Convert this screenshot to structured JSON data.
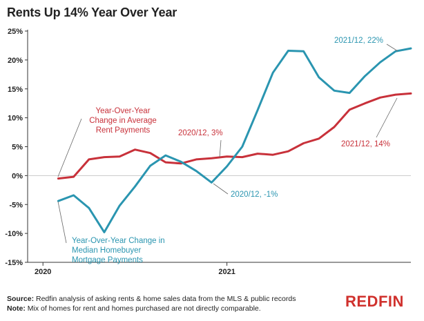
{
  "chart_data": {
    "type": "line",
    "title": "Rents Up 14% Year Over Year",
    "xlabel": "",
    "ylabel": "",
    "ylim": [
      -15,
      25
    ],
    "y_ticks": [
      25,
      20,
      15,
      10,
      5,
      0,
      -5,
      -10,
      -15
    ],
    "y_tick_labels": [
      "25%",
      "20%",
      "15%",
      "10%",
      "5%",
      "0%",
      "-5%",
      "-10%",
      "-15%"
    ],
    "x_tick_labels": [
      "2020",
      "2021"
    ],
    "x_tick_positions": [
      0,
      12
    ],
    "xlim": [
      -1,
      24
    ],
    "grid": false,
    "series": [
      {
        "name": "Year-Over-Year Change in Average Rent Payments",
        "color": "#c8313a",
        "x": [
          1,
          2,
          3,
          4,
          5,
          6,
          7,
          8,
          9,
          10,
          11,
          12,
          13,
          14,
          15,
          16,
          17,
          18,
          19,
          20,
          21,
          22,
          23,
          24
        ],
        "values": [
          -0.5,
          -0.2,
          2.8,
          3.2,
          3.3,
          4.5,
          3.9,
          2.3,
          2.1,
          2.8,
          3.0,
          3.3,
          3.2,
          3.8,
          3.6,
          4.2,
          5.6,
          6.4,
          8.4,
          11.4,
          12.5,
          13.5,
          14.0,
          14.2
        ]
      },
      {
        "name": "Year-Over-Year Change in Median Homebuyer Mortgage Payments",
        "color": "#2a95b0",
        "x": [
          1,
          2,
          3,
          4,
          5,
          6,
          7,
          8,
          9,
          10,
          11,
          12,
          13,
          14,
          15,
          16,
          17,
          18,
          19,
          20,
          21,
          22,
          23,
          24
        ],
        "values": [
          -4.4,
          -3.4,
          -5.6,
          -9.8,
          -5.2,
          -1.9,
          1.7,
          3.5,
          2.4,
          0.8,
          -1.2,
          1.6,
          5.0,
          11.3,
          17.8,
          21.6,
          21.5,
          17.0,
          14.7,
          14.3,
          17.2,
          19.6,
          21.5,
          22.0
        ]
      }
    ],
    "annotations": [
      "Year-Over-Year Change in Average Rent Payments",
      "2020/12, 3%",
      "2021/12, 14%",
      "Year-Over-Year Change in Median Homebuyer Mortgage Payments",
      "2020/12, -1%",
      "2021/12, 22%"
    ]
  },
  "labels": {
    "rent_line1": "Year-Over-Year",
    "rent_line2": "Change in Average",
    "rent_line3": "Rent Payments",
    "rent_2020": "2020/12, 3%",
    "rent_2021": "2021/12, 14%",
    "mort_line1": "Year-Over-Year Change in",
    "mort_line2": "Median Homebuyer",
    "mort_line3": "Mortgage Payments",
    "mort_2020": "2020/12, -1%",
    "mort_2021": "2021/12, 22%"
  },
  "footer": {
    "source_label": "Source:",
    "source_text": " Redfin analysis of asking rents & home sales data from the MLS & public records",
    "note_label": "Note:",
    "note_text": " Mix of homes for rent and homes purchased are not directly comparable."
  },
  "brand": "REDFIN"
}
